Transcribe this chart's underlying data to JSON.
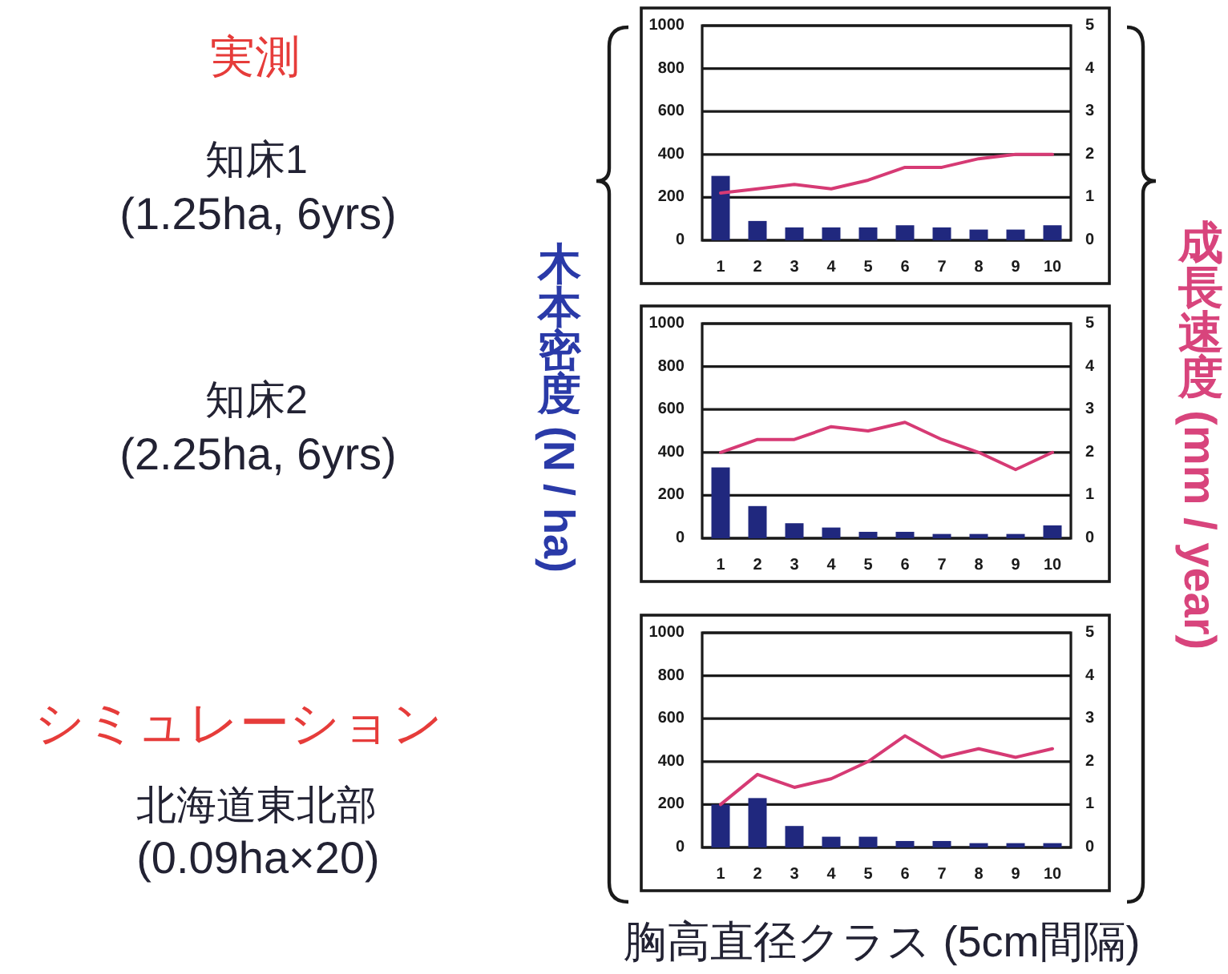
{
  "chart_data": [
    {
      "type": "other",
      "annotations": [
        "実測",
        "知床1",
        "(1.25ha, 6yrs)",
        "知床2",
        "(2.25ha, 6yrs)",
        "シミュレーション",
        "北海道東北部",
        "(0.09ha×20)"
      ]
    },
    {
      "type": "bar",
      "categories": [
        "1",
        "2",
        "3",
        "4",
        "5",
        "6",
        "7",
        "8",
        "9",
        "10"
      ],
      "series": [
        {
          "color": "#20287e",
          "values": [
            300,
            90,
            60,
            60,
            60,
            70,
            60,
            50,
            50,
            70
          ]
        },
        {
          "type": "line",
          "axis": "y2",
          "color": "#d63a74",
          "values": [
            1.1,
            1.2,
            1.3,
            1.2,
            1.4,
            1.7,
            1.7,
            1.9,
            2.0,
            2.0
          ]
        }
      ],
      "ylim": [
        0,
        1000
      ],
      "yticks": [
        0,
        200,
        400,
        600,
        800,
        1000
      ],
      "y2lim": [
        0,
        5
      ],
      "y2ticks": [
        0,
        1,
        2,
        3,
        4,
        5
      ],
      "grid": "y"
    },
    {
      "type": "bar",
      "ylabel": "木本密度 (N / ha)",
      "y2label": "成長速度 (mm / year)",
      "categories": [
        "1",
        "2",
        "3",
        "4",
        "5",
        "6",
        "7",
        "8",
        "9",
        "10"
      ],
      "series": [
        {
          "color": "#20287e",
          "values": [
            330,
            150,
            70,
            50,
            30,
            30,
            20,
            20,
            20,
            60
          ]
        },
        {
          "type": "line",
          "axis": "y2",
          "color": "#d63a74",
          "values": [
            2.0,
            2.3,
            2.3,
            2.6,
            2.5,
            2.7,
            2.3,
            2.0,
            1.6,
            2.0
          ]
        }
      ],
      "ylim": [
        0,
        1000
      ],
      "yticks": [
        0,
        200,
        400,
        600,
        800,
        1000
      ],
      "y2lim": [
        0,
        5
      ],
      "y2ticks": [
        0,
        1,
        2,
        3,
        4,
        5
      ],
      "grid": "y"
    },
    {
      "type": "bar",
      "xlabel": "胸高直径クラス (5cm間隔)",
      "categories": [
        "1",
        "2",
        "3",
        "4",
        "5",
        "6",
        "7",
        "8",
        "9",
        "10"
      ],
      "series": [
        {
          "color": "#20287e",
          "values": [
            200,
            230,
            100,
            50,
            50,
            30,
            30,
            20,
            20,
            20
          ]
        },
        {
          "type": "line",
          "axis": "y2",
          "color": "#d63a74",
          "values": [
            1.0,
            1.7,
            1.4,
            1.6,
            2.0,
            2.6,
            2.1,
            2.3,
            2.1,
            2.3
          ]
        }
      ],
      "ylim": [
        0,
        1000
      ],
      "yticks": [
        0,
        200,
        400,
        600,
        800,
        1000
      ],
      "y2lim": [
        0,
        5
      ],
      "y2ticks": [
        0,
        1,
        2,
        3,
        4,
        5
      ],
      "grid": "y"
    }
  ]
}
